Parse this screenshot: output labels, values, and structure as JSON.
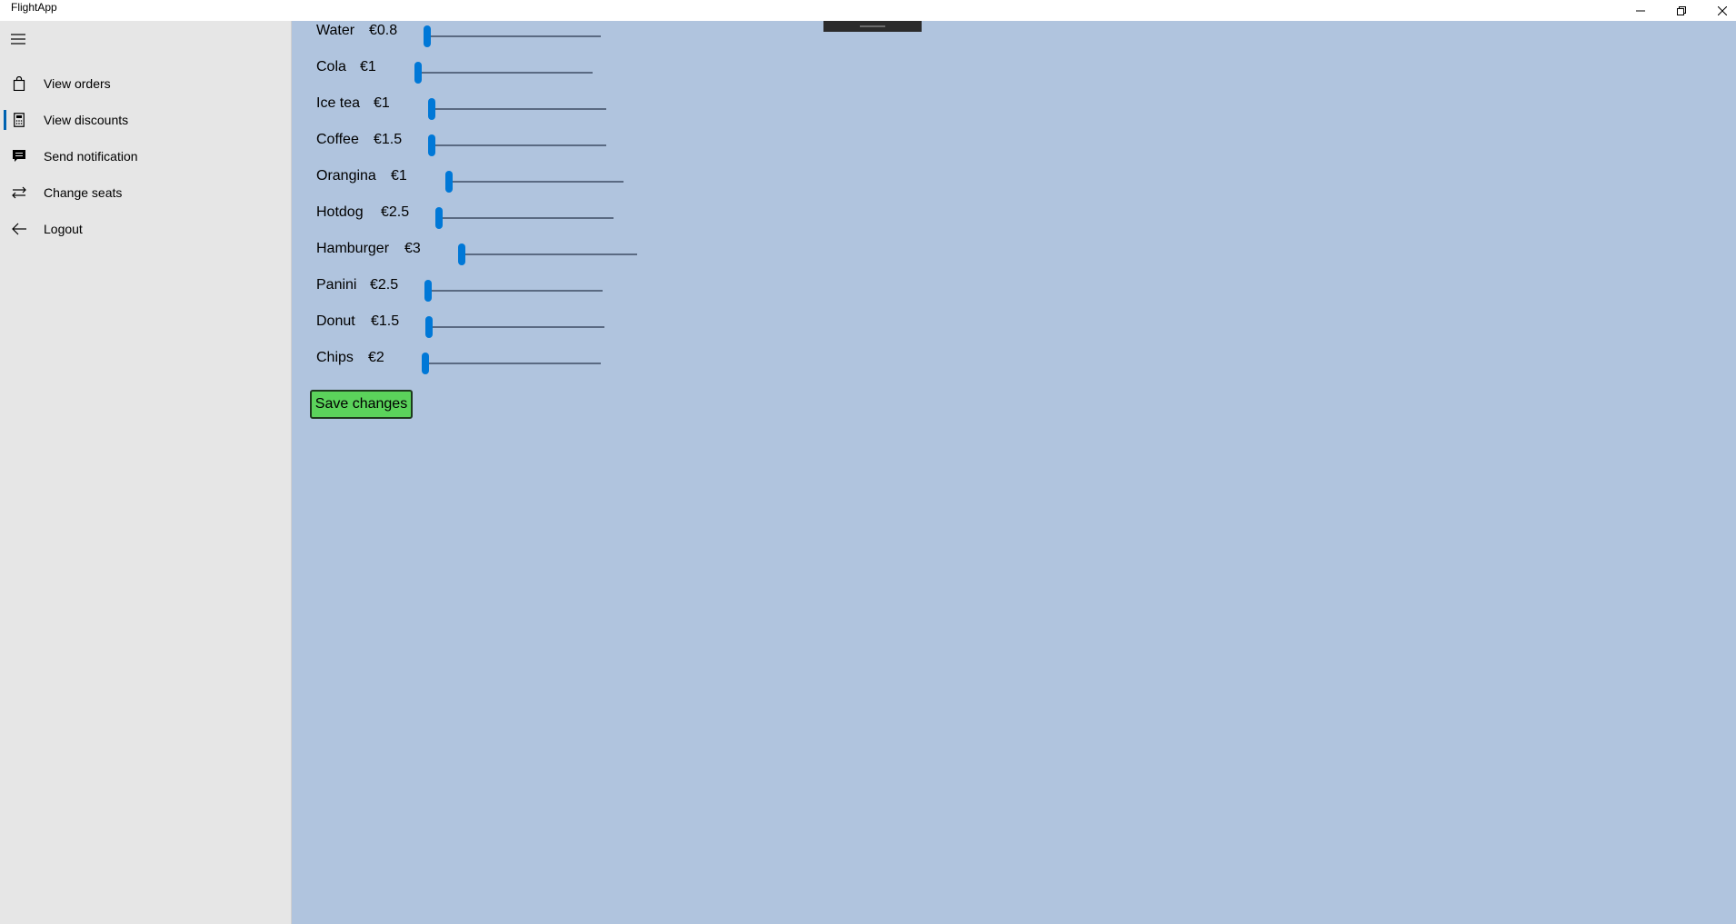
{
  "app": {
    "title": "FlightApp"
  },
  "window_controls": {
    "minimize": "minimize-icon",
    "restore": "restore-icon",
    "close": "close-icon"
  },
  "sidebar": {
    "menu_icon": "hamburger-icon",
    "items": [
      {
        "label": "View orders",
        "icon": "shopping-bag-icon",
        "selected": false
      },
      {
        "label": "View discounts",
        "icon": "calculator-icon",
        "selected": true
      },
      {
        "label": "Send notification",
        "icon": "message-icon",
        "selected": false
      },
      {
        "label": "Change seats",
        "icon": "swap-icon",
        "selected": false
      },
      {
        "label": "Logout",
        "icon": "back-arrow-icon",
        "selected": false
      }
    ]
  },
  "products": [
    {
      "name": "Water",
      "price": "€0.8",
      "discount": 0
    },
    {
      "name": "Cola",
      "price": "€1",
      "discount": 0
    },
    {
      "name": "Ice tea",
      "price": "€1",
      "discount": 0
    },
    {
      "name": "Coffee",
      "price": "€1.5",
      "discount": 0
    },
    {
      "name": "Orangina",
      "price": "€1",
      "discount": 0
    },
    {
      "name": "Hotdog",
      "price": "€2.5",
      "discount": 0
    },
    {
      "name": "Hamburger",
      "price": "€3",
      "discount": 0
    },
    {
      "name": "Panini",
      "price": "€2.5",
      "discount": 0
    },
    {
      "name": "Donut",
      "price": "€1.5",
      "discount": 0
    },
    {
      "name": "Chips",
      "price": "€2",
      "discount": 0
    }
  ],
  "actions": {
    "save_label": "Save changes"
  },
  "colors": {
    "background": "#b0c4de",
    "sidebar": "#e6e6e6",
    "accent": "#0078d7",
    "save_button": "#5bd35b"
  }
}
